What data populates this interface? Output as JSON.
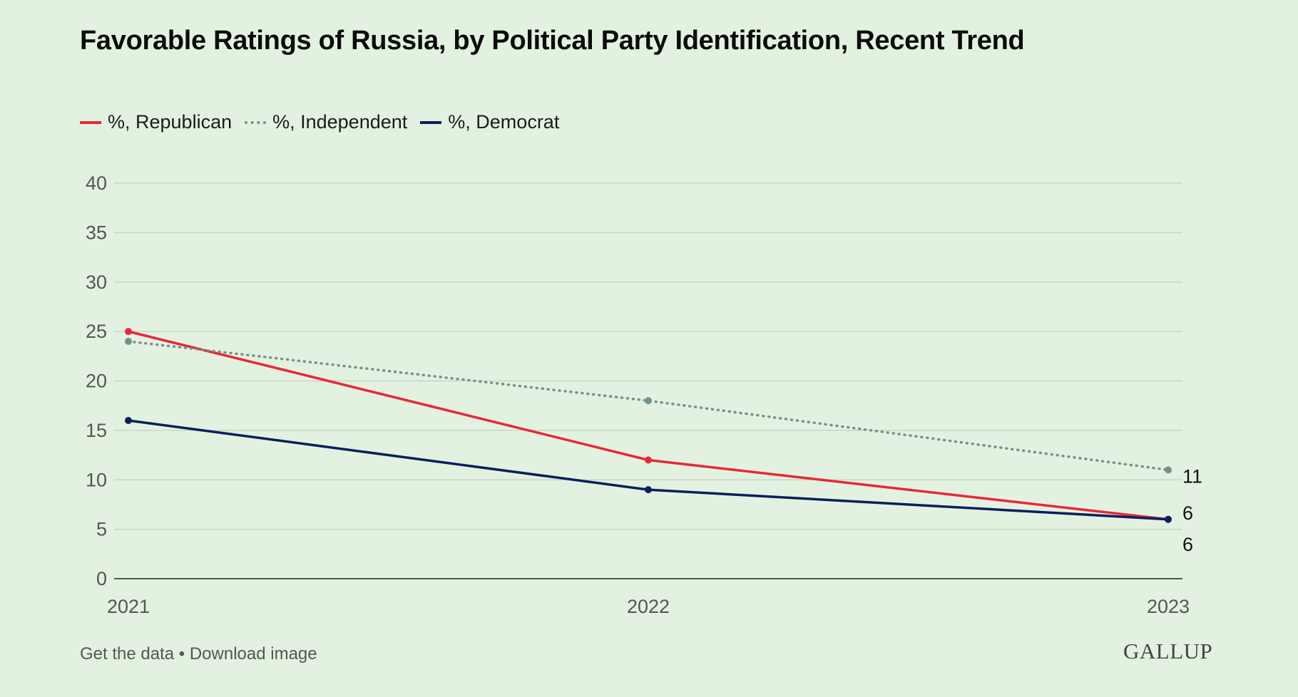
{
  "title": "Favorable Ratings of Russia, by Political Party Identification, Recent Trend",
  "legend": [
    {
      "label": "%, Republican",
      "color": "#e8283a",
      "style": "solid"
    },
    {
      "label": "%, Independent",
      "color": "#74928c",
      "style": "dotted"
    },
    {
      "label": "%, Democrat",
      "color": "#0b1f5c",
      "style": "solid"
    }
  ],
  "chart_data": {
    "type": "line",
    "title": "Favorable Ratings of Russia, by Political Party Identification, Recent Trend",
    "xlabel": "",
    "ylabel": "",
    "x": [
      "2021",
      "2022",
      "2023"
    ],
    "ylim": [
      0,
      40
    ],
    "yticks": [
      0,
      5,
      10,
      15,
      20,
      25,
      30,
      35,
      40
    ],
    "grid": true,
    "legend_position": "top-left",
    "series": [
      {
        "name": "%, Republican",
        "color": "#e8283a",
        "style": "solid",
        "values": [
          25,
          12,
          6
        ]
      },
      {
        "name": "%, Independent",
        "color": "#74928c",
        "style": "dotted",
        "values": [
          24,
          18,
          11
        ]
      },
      {
        "name": "%, Democrat",
        "color": "#0b1f5c",
        "style": "solid",
        "values": [
          16,
          9,
          6
        ]
      }
    ],
    "end_labels": [
      "11",
      "6",
      "6"
    ]
  },
  "footer": {
    "get_data": "Get the data",
    "separator": "•",
    "download": "Download image",
    "logo": "GALLUP"
  }
}
